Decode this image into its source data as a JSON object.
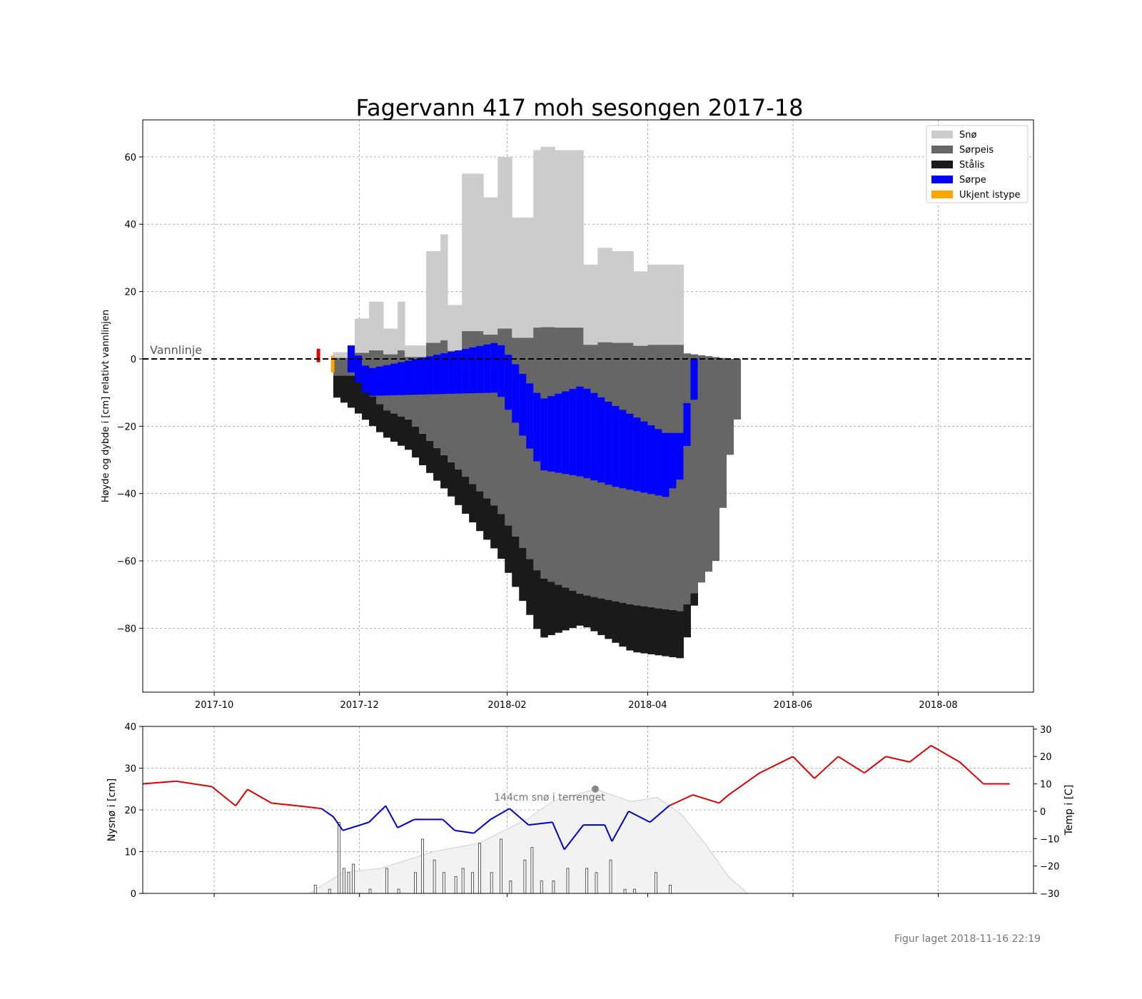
{
  "title": "Fagervann 417 moh sesongen 2017-18",
  "footer": "Figur laget 2018-11-16 22:19",
  "colors": {
    "sno": "#cccccc",
    "sorpeis": "#666666",
    "stalis": "#1a1a1a",
    "sorpe": "#0000ff",
    "ukjent": "#ffa500",
    "warm": "#dd0000",
    "cold": "#0000cc",
    "terrain": "#f2f2f2",
    "grid": "#999999"
  },
  "chart_data": [
    {
      "type": "area",
      "ylabel": "Høyde og dybde i [cm] relativt vannlinjen",
      "ylim": [
        -99,
        71
      ],
      "yticks": [
        60,
        40,
        20,
        0,
        -20,
        -40,
        -60,
        -80
      ],
      "ytick_labels": [
        "60",
        "40",
        "20",
        "0",
        "−20",
        "−40",
        "−60",
        "−80"
      ],
      "xlim": [
        "2017-09-01",
        "2018-09-10"
      ],
      "xticks": [
        "2017-10-01",
        "2017-12-01",
        "2018-02-01",
        "2018-04-01",
        "2018-06-01",
        "2018-08-01"
      ],
      "xtick_labels": [
        "2017-10",
        "2017-12",
        "2018-02",
        "2018-04",
        "2018-06",
        "2018-08"
      ],
      "grid": true,
      "legend_position": "top-right",
      "annotation": "Vannlinje",
      "legend": [
        "Snø",
        "Sørpeis",
        "Stålis",
        "Sørpe",
        "Ukjent istype"
      ],
      "series": [
        {
          "name": "Snø",
          "x": [
            "2017-11-20",
            "2017-11-27",
            "2017-12-03",
            "2017-12-10",
            "2017-12-17",
            "2017-12-20",
            "2017-12-27",
            "2018-01-03",
            "2018-01-06",
            "2018-01-13",
            "2018-01-20",
            "2018-01-27",
            "2018-02-03",
            "2018-02-10",
            "2018-02-14",
            "2018-02-20",
            "2018-02-28",
            "2018-03-03",
            "2018-03-10",
            "2018-03-17",
            "2018-03-24",
            "2018-03-31",
            "2018-04-07",
            "2018-04-14"
          ],
          "top": [
            2,
            12,
            17,
            9,
            17,
            4,
            32,
            37,
            16,
            55,
            48,
            60,
            42,
            62,
            63,
            62,
            62,
            28,
            33,
            32,
            26,
            28,
            28,
            5
          ]
        },
        {
          "name": "Sørpeis",
          "x": [
            "2017-11-27",
            "2017-12-10",
            "2017-12-20",
            "2018-01-06",
            "2018-01-27",
            "2018-02-14",
            "2018-03-03",
            "2018-03-24",
            "2018-04-14",
            "2018-04-28",
            "2018-05-06"
          ],
          "bottom": [
            -5,
            -15,
            -18,
            -30,
            -45,
            -65,
            -70,
            -73,
            -75,
            -60,
            -18
          ]
        },
        {
          "name": "Stålis",
          "x": [
            "2017-11-13",
            "2017-11-27",
            "2017-12-10",
            "2017-12-20",
            "2018-01-06",
            "2018-01-27",
            "2018-02-14",
            "2018-03-03",
            "2018-03-24",
            "2018-04-14",
            "2018-04-28",
            "2018-05-06"
          ],
          "bottom": [
            -8,
            -15,
            -23,
            -27,
            -40,
            -58,
            -83,
            -79,
            -87,
            -89,
            -45,
            -5
          ]
        },
        {
          "name": "Sørpe",
          "x": [
            "2017-11-24",
            "2017-12-03",
            "2018-01-27",
            "2018-02-14",
            "2018-03-03",
            "2018-03-17",
            "2018-04-07",
            "2018-04-14",
            "2018-04-21"
          ],
          "top": [
            6,
            -3,
            5,
            -12,
            -8,
            -14,
            -22,
            -22,
            9
          ],
          "bottom": [
            -2,
            -11,
            -10,
            -33,
            -35,
            -38,
            -41,
            -35,
            -3
          ]
        }
      ]
    },
    {
      "type": "bar",
      "ylabel": "Nysnø i [cm]",
      "ylabel_right": "Temp i [C]",
      "ylim": [
        0,
        40
      ],
      "yticks": [
        0,
        10,
        20,
        30,
        40
      ],
      "ylim_right": [
        -30,
        31
      ],
      "yticks_right": [
        -30,
        -20,
        -10,
        0,
        10,
        20,
        30
      ],
      "ytick_labels_right": [
        "−30",
        "−20",
        "−10",
        "0",
        "10",
        "20",
        "30"
      ],
      "annotation": "144cm snø i terrenget",
      "snow_terrain": {
        "x": [
          "2017-11-10",
          "2017-11-24",
          "2017-12-10",
          "2018-01-01",
          "2018-01-20",
          "2018-02-10",
          "2018-02-20",
          "2018-03-10",
          "2018-03-25",
          "2018-04-05",
          "2018-04-15",
          "2018-04-25",
          "2018-05-05",
          "2018-05-13"
        ],
        "y": [
          0,
          5,
          6,
          10,
          12,
          18,
          22,
          25,
          22,
          23,
          19,
          12,
          4,
          0
        ]
      },
      "new_snow": {
        "x": [
          "2017-11-12",
          "2017-11-18",
          "2017-11-22",
          "2017-11-24",
          "2017-11-26",
          "2017-11-28",
          "2017-12-05",
          "2017-12-12",
          "2017-12-17",
          "2017-12-24",
          "2017-12-27",
          "2018-01-01",
          "2018-01-05",
          "2018-01-10",
          "2018-01-13",
          "2018-01-17",
          "2018-01-20",
          "2018-01-25",
          "2018-01-29",
          "2018-02-02",
          "2018-02-08",
          "2018-02-11",
          "2018-02-15",
          "2018-02-20",
          "2018-02-26",
          "2018-03-06",
          "2018-03-10",
          "2018-03-16",
          "2018-03-22",
          "2018-03-26",
          "2018-04-04",
          "2018-04-10"
        ],
        "y": [
          2,
          1,
          17,
          6,
          5,
          7,
          1,
          6,
          1,
          5,
          13,
          8,
          5,
          4,
          6,
          5,
          12,
          5,
          13,
          3,
          8,
          11,
          3,
          3,
          6,
          6,
          5,
          8,
          1,
          1,
          5,
          2
        ]
      },
      "temperature": {
        "x": [
          "2017-09-01",
          "2017-09-15",
          "2017-09-30",
          "2017-10-10",
          "2017-10-15",
          "2017-10-25",
          "2017-11-05",
          "2017-11-15",
          "2017-11-20",
          "2017-11-24",
          "2017-12-05",
          "2017-12-12",
          "2017-12-17",
          "2017-12-24",
          "2018-01-05",
          "2018-01-10",
          "2018-01-18",
          "2018-01-25",
          "2018-02-02",
          "2018-02-10",
          "2018-02-20",
          "2018-02-25",
          "2018-03-05",
          "2018-03-14",
          "2018-03-17",
          "2018-03-24",
          "2018-04-02",
          "2018-04-10",
          "2018-04-20",
          "2018-05-01",
          "2018-05-05",
          "2018-05-18",
          "2018-06-01",
          "2018-06-10",
          "2018-06-20",
          "2018-07-01",
          "2018-07-10",
          "2018-07-20",
          "2018-07-29",
          "2018-08-10",
          "2018-08-20",
          "2018-08-31"
        ],
        "y": [
          10,
          11,
          9,
          2,
          8,
          3,
          2,
          1,
          -2,
          -7,
          -4,
          2,
          -6,
          -3,
          -3,
          -7,
          -8,
          -3,
          1,
          -5,
          -4,
          -14,
          -5,
          -5,
          -11,
          0,
          -4,
          2,
          6,
          3,
          6,
          14,
          20,
          12,
          20,
          14,
          20,
          18,
          24,
          18,
          10,
          10
        ]
      }
    }
  ]
}
